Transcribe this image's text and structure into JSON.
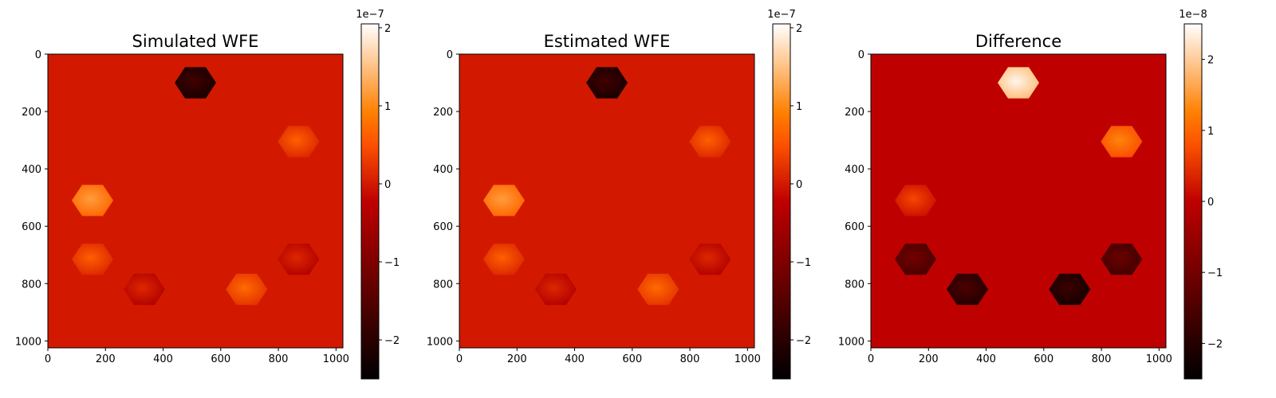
{
  "chart_data": [
    {
      "type": "heatmap",
      "title": "Simulated WFE",
      "colormap": "gist_heat",
      "xlim": [
        0,
        1024
      ],
      "ylim": [
        1024,
        0
      ],
      "x_ticks": [
        0,
        200,
        400,
        600,
        800,
        1000
      ],
      "y_ticks": [
        0,
        200,
        400,
        600,
        800,
        1000
      ],
      "colorbar": {
        "range": [
          -2.5e-07,
          2.05e-07
        ],
        "multiplier_label": "1e−7",
        "ticks": [
          -2,
          -1,
          0,
          1,
          2
        ],
        "tick_labels": [
          "−2",
          "−1",
          "0",
          "1",
          "2"
        ]
      },
      "background_value": 0,
      "segments": [
        {
          "center_x": 512,
          "center_y": 100,
          "value": -2e-07
        },
        {
          "center_x": 870,
          "center_y": 305,
          "value": 3.5e-08
        },
        {
          "center_x": 155,
          "center_y": 510,
          "value": 9e-08
        },
        {
          "center_x": 155,
          "center_y": 715,
          "value": 3.5e-08
        },
        {
          "center_x": 870,
          "center_y": 715,
          "value": -1.5e-08
        },
        {
          "center_x": 335,
          "center_y": 820,
          "value": -1.5e-08
        },
        {
          "center_x": 690,
          "center_y": 820,
          "value": 4.5e-08
        }
      ]
    },
    {
      "type": "heatmap",
      "title": "Estimated WFE",
      "colormap": "gist_heat",
      "xlim": [
        0,
        1024
      ],
      "ylim": [
        1024,
        0
      ],
      "x_ticks": [
        0,
        200,
        400,
        600,
        800,
        1000
      ],
      "y_ticks": [
        0,
        200,
        400,
        600,
        800,
        1000
      ],
      "colorbar": {
        "range": [
          -2.5e-07,
          2.05e-07
        ],
        "multiplier_label": "1e−7",
        "ticks": [
          -2,
          -1,
          0,
          1,
          2
        ],
        "tick_labels": [
          "−2",
          "−1",
          "0",
          "1",
          "2"
        ]
      },
      "background_value": 0,
      "segments": [
        {
          "center_x": 512,
          "center_y": 100,
          "value": -2e-07
        },
        {
          "center_x": 870,
          "center_y": 305,
          "value": 3.5e-08
        },
        {
          "center_x": 155,
          "center_y": 510,
          "value": 9e-08
        },
        {
          "center_x": 155,
          "center_y": 715,
          "value": 3.5e-08
        },
        {
          "center_x": 870,
          "center_y": 715,
          "value": -1.5e-08
        },
        {
          "center_x": 335,
          "center_y": 820,
          "value": -1.5e-08
        },
        {
          "center_x": 690,
          "center_y": 820,
          "value": 4.5e-08
        }
      ]
    },
    {
      "type": "heatmap",
      "title": "Difference",
      "colormap": "gist_heat",
      "xlim": [
        0,
        1024
      ],
      "ylim": [
        1024,
        0
      ],
      "x_ticks": [
        0,
        200,
        400,
        600,
        800,
        1000
      ],
      "y_ticks": [
        0,
        200,
        400,
        600,
        800,
        1000
      ],
      "colorbar": {
        "range": [
          -2.5e-08,
          2.5e-08
        ],
        "multiplier_label": "1e−8",
        "ticks": [
          -2,
          -1,
          0,
          1,
          2
        ],
        "tick_labels": [
          "−2",
          "−1",
          "0",
          "1",
          "2"
        ]
      },
      "background_value": 0,
      "segments": [
        {
          "center_x": 512,
          "center_y": 100,
          "value": 2.1e-08
        },
        {
          "center_x": 870,
          "center_y": 305,
          "value": 1e-08
        },
        {
          "center_x": 155,
          "center_y": 510,
          "value": 4e-09
        },
        {
          "center_x": 155,
          "center_y": 715,
          "value": -1.3e-08
        },
        {
          "center_x": 870,
          "center_y": 715,
          "value": -1.4e-08
        },
        {
          "center_x": 335,
          "center_y": 820,
          "value": -1.8e-08
        },
        {
          "center_x": 690,
          "center_y": 820,
          "value": -2e-08
        }
      ]
    }
  ]
}
